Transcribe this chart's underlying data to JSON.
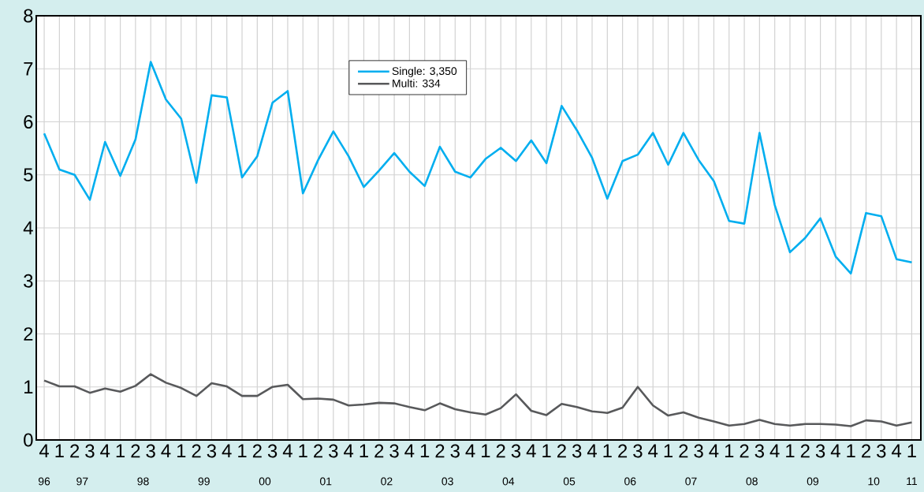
{
  "chart_data": {
    "type": "line",
    "categories": [
      "4",
      "1",
      "2",
      "3",
      "4",
      "1",
      "2",
      "3",
      "4",
      "1",
      "2",
      "3",
      "4",
      "1",
      "2",
      "3",
      "4",
      "1",
      "2",
      "3",
      "4",
      "1",
      "2",
      "3",
      "4",
      "1",
      "2",
      "3",
      "4",
      "1",
      "2",
      "3",
      "4",
      "1",
      "2",
      "3",
      "4",
      "1",
      "2",
      "3",
      "4",
      "1",
      "2",
      "3",
      "4",
      "1",
      "2",
      "3",
      "4",
      "1",
      "2",
      "3",
      "4",
      "1",
      "2",
      "3",
      "4",
      "1"
    ],
    "series": [
      {
        "name": "Single: 3,350",
        "color": "#00aeef",
        "values": [
          5.78,
          5.1,
          5.0,
          4.53,
          5.62,
          4.98,
          5.67,
          7.13,
          6.42,
          6.06,
          4.85,
          6.5,
          6.46,
          4.95,
          5.35,
          6.36,
          6.58,
          4.65,
          5.28,
          5.82,
          5.35,
          4.77,
          5.08,
          5.41,
          5.06,
          4.79,
          5.53,
          5.06,
          4.95,
          5.3,
          5.51,
          5.26,
          5.65,
          5.22,
          6.3,
          5.84,
          5.32,
          4.55,
          5.26,
          5.38,
          5.79,
          5.19,
          5.79,
          5.28,
          4.88,
          4.13,
          4.08,
          5.79,
          4.43,
          3.54,
          3.81,
          4.18,
          3.46,
          3.14,
          4.28,
          4.22,
          3.41,
          3.35
        ]
      },
      {
        "name": "Multi: 334",
        "color": "#58595b",
        "values": [
          1.12,
          1.01,
          1.01,
          0.89,
          0.97,
          0.91,
          1.02,
          1.24,
          1.08,
          0.98,
          0.83,
          1.07,
          1.01,
          0.83,
          0.83,
          1.0,
          1.04,
          0.77,
          0.78,
          0.76,
          0.65,
          0.67,
          0.7,
          0.69,
          0.62,
          0.56,
          0.69,
          0.58,
          0.52,
          0.48,
          0.6,
          0.86,
          0.55,
          0.47,
          0.68,
          0.62,
          0.54,
          0.51,
          0.61,
          1.0,
          0.65,
          0.46,
          0.52,
          0.42,
          0.35,
          0.27,
          0.3,
          0.38,
          0.3,
          0.27,
          0.3,
          0.3,
          0.29,
          0.26,
          0.37,
          0.35,
          0.27,
          0.33
        ]
      }
    ],
    "annotations": [
      "96",
      "97",
      "98",
      "99",
      "00",
      "01",
      "02",
      "03",
      "04",
      "05",
      "06",
      "07",
      "08",
      "09",
      "10",
      "11"
    ],
    "ylim": [
      0,
      8
    ],
    "yticks": [
      0,
      1,
      2,
      3,
      4,
      5,
      6,
      7,
      8
    ],
    "grid": true,
    "legend": "top",
    "marker": "none",
    "line_style": "solid"
  }
}
